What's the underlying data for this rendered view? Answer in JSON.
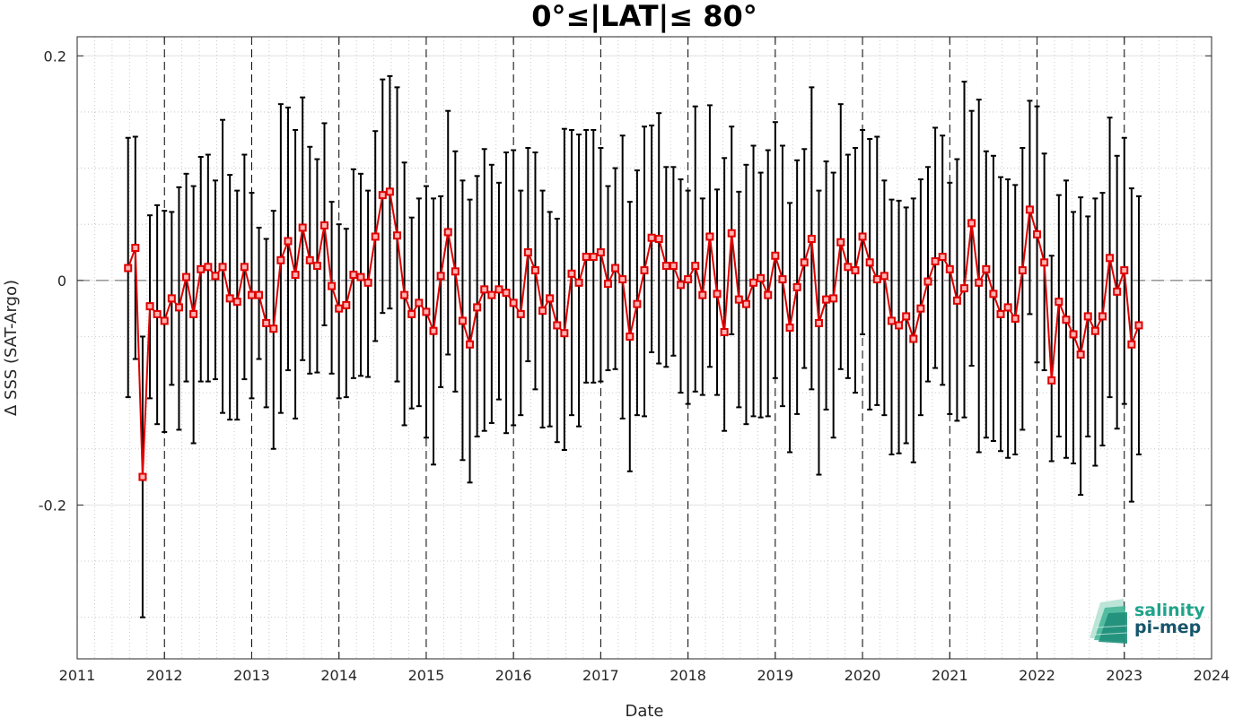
{
  "chart_data": {
    "type": "line",
    "title": "0°≤|LAT|≤ 80°",
    "xlabel": "Date",
    "ylabel": "Δ SSS (SAT-Argo)",
    "xlim": [
      2011,
      2024
    ],
    "ylim": [
      -0.337,
      0.217
    ],
    "xticks": [
      "2011",
      "2012",
      "2013",
      "2014",
      "2015",
      "2016",
      "2017",
      "2018",
      "2019",
      "2020",
      "2021",
      "2022",
      "2023",
      "2024"
    ],
    "yticks": [
      {
        "value": -0.2,
        "label": "-0.2"
      },
      {
        "value": 0,
        "label": "0"
      },
      {
        "value": 0.2,
        "label": "0.2"
      }
    ],
    "grid": true,
    "zero_line": true,
    "series": [
      {
        "color": "#e00000",
        "marker": "square",
        "error_bar_color": "#000000",
        "x": [
          "2011-08",
          "2011-09",
          "2011-10",
          "2011-11",
          "2011-12",
          "2012-01",
          "2012-02",
          "2012-03",
          "2012-04",
          "2012-05",
          "2012-06",
          "2012-07",
          "2012-08",
          "2012-09",
          "2012-10",
          "2012-11",
          "2012-12",
          "2013-01",
          "2013-02",
          "2013-03",
          "2013-04",
          "2013-05",
          "2013-06",
          "2013-07",
          "2013-08",
          "2013-09",
          "2013-10",
          "2013-11",
          "2013-12",
          "2014-01",
          "2014-02",
          "2014-03",
          "2014-04",
          "2014-05",
          "2014-06",
          "2014-07",
          "2014-08",
          "2014-09",
          "2014-10",
          "2014-11",
          "2014-12",
          "2015-01",
          "2015-02",
          "2015-03",
          "2015-04",
          "2015-05",
          "2015-06",
          "2015-07",
          "2015-08",
          "2015-09",
          "2015-10",
          "2015-11",
          "2015-12",
          "2016-01",
          "2016-02",
          "2016-03",
          "2016-04",
          "2016-05",
          "2016-06",
          "2016-07",
          "2016-08",
          "2016-09",
          "2016-10",
          "2016-11",
          "2016-12",
          "2017-01",
          "2017-02",
          "2017-03",
          "2017-04",
          "2017-05",
          "2017-06",
          "2017-07",
          "2017-08",
          "2017-09",
          "2017-10",
          "2017-11",
          "2017-12",
          "2018-01",
          "2018-02",
          "2018-03",
          "2018-04",
          "2018-05",
          "2018-06",
          "2018-07",
          "2018-08",
          "2018-09",
          "2018-10",
          "2018-11",
          "2018-12",
          "2019-01",
          "2019-02",
          "2019-03",
          "2019-04",
          "2019-05",
          "2019-06",
          "2019-07",
          "2019-08",
          "2019-09",
          "2019-10",
          "2019-11",
          "2019-12",
          "2020-01",
          "2020-02",
          "2020-03",
          "2020-04",
          "2020-05",
          "2020-06",
          "2020-07",
          "2020-08",
          "2020-09",
          "2020-10",
          "2020-11",
          "2020-12",
          "2021-01",
          "2021-02",
          "2021-03",
          "2021-04",
          "2021-05",
          "2021-06",
          "2021-07",
          "2021-08",
          "2021-09",
          "2021-10",
          "2021-11",
          "2021-12",
          "2022-01",
          "2022-02",
          "2022-03",
          "2022-04",
          "2022-05",
          "2022-06",
          "2022-07",
          "2022-08",
          "2022-09",
          "2022-10",
          "2022-11",
          "2022-12",
          "2023-01",
          "2023-02",
          "2023-03"
        ],
        "y": [
          0.011,
          0.029,
          -0.175,
          -0.023,
          -0.03,
          -0.036,
          -0.016,
          -0.024,
          0.003,
          -0.03,
          0.01,
          0.012,
          0.004,
          0.012,
          -0.016,
          -0.019,
          0.012,
          -0.013,
          -0.013,
          -0.038,
          -0.043,
          0.018,
          0.035,
          0.005,
          0.047,
          0.018,
          0.013,
          0.049,
          -0.005,
          -0.025,
          -0.022,
          0.005,
          0.003,
          -0.002,
          0.039,
          0.076,
          0.079,
          0.04,
          -0.013,
          -0.03,
          -0.02,
          -0.028,
          -0.045,
          0.004,
          0.043,
          0.008,
          -0.036,
          -0.057,
          -0.024,
          -0.008,
          -0.013,
          -0.008,
          -0.011,
          -0.02,
          -0.03,
          0.025,
          0.009,
          -0.027,
          -0.016,
          -0.04,
          -0.047,
          0.006,
          -0.002,
          0.021,
          0.021,
          0.025,
          -0.003,
          0.011,
          0.001,
          -0.05,
          -0.021,
          0.009,
          0.038,
          0.037,
          0.013,
          0.013,
          -0.004,
          0.001,
          0.013,
          -0.013,
          0.039,
          -0.012,
          -0.046,
          0.042,
          -0.017,
          -0.021,
          -0.002,
          0.002,
          -0.013,
          0.022,
          0.001,
          -0.042,
          -0.006,
          0.016,
          0.037,
          -0.038,
          -0.017,
          -0.016,
          0.034,
          0.012,
          0.009,
          0.039,
          0.016,
          0.001,
          0.004,
          -0.036,
          -0.04,
          -0.032,
          -0.052,
          -0.025,
          -0.001,
          0.017,
          0.021,
          0.01,
          -0.018,
          -0.007,
          0.051,
          -0.002,
          0.01,
          -0.012,
          -0.03,
          -0.024,
          -0.034,
          0.009,
          0.063,
          0.041,
          0.016,
          -0.089,
          -0.019,
          -0.035,
          -0.048,
          -0.066,
          -0.032,
          -0.045,
          -0.032,
          0.02,
          -0.01,
          0.009,
          -0.057,
          -0.04
        ],
        "err_high": [
          0.127,
          0.128,
          -0.05,
          0.058,
          0.067,
          0.062,
          0.061,
          0.083,
          0.095,
          0.084,
          0.11,
          0.112,
          0.089,
          0.143,
          0.094,
          0.08,
          0.112,
          0.078,
          0.047,
          0.037,
          0.062,
          0.157,
          0.154,
          0.134,
          0.163,
          0.119,
          0.108,
          0.14,
          0.07,
          0.05,
          0.046,
          0.099,
          0.095,
          0.08,
          0.133,
          0.179,
          0.182,
          0.172,
          0.105,
          0.056,
          0.073,
          0.084,
          0.073,
          0.075,
          0.151,
          0.115,
          0.089,
          0.072,
          0.093,
          0.117,
          0.103,
          0.087,
          0.114,
          0.116,
          0.08,
          0.118,
          0.114,
          0.08,
          0.061,
          0.055,
          0.135,
          0.134,
          0.13,
          0.134,
          0.134,
          0.118,
          0.084,
          0.1,
          0.129,
          0.07,
          0.098,
          0.137,
          0.138,
          0.149,
          0.101,
          0.101,
          0.09,
          0.08,
          0.155,
          0.073,
          0.156,
          0.081,
          0.109,
          0.137,
          0.079,
          0.103,
          0.12,
          0.096,
          0.116,
          0.141,
          0.12,
          0.069,
          0.107,
          0.117,
          0.172,
          0.08,
          0.106,
          0.096,
          0.157,
          0.112,
          0.118,
          0.134,
          0.126,
          0.128,
          0.089,
          0.072,
          0.071,
          0.065,
          0.073,
          0.09,
          0.101,
          0.136,
          0.129,
          0.087,
          0.108,
          0.177,
          0.151,
          0.161,
          0.115,
          0.111,
          0.092,
          0.09,
          0.085,
          0.118,
          0.16,
          0.155,
          0.113,
          0.022,
          0.076,
          0.089,
          0.061,
          0.074,
          0.057,
          0.073,
          0.078,
          0.145,
          0.111,
          0.127,
          0.082,
          0.075
        ],
        "err_low": [
          -0.104,
          -0.07,
          -0.3,
          -0.105,
          -0.128,
          -0.135,
          -0.093,
          -0.133,
          -0.09,
          -0.145,
          -0.09,
          -0.09,
          -0.088,
          -0.118,
          -0.124,
          -0.124,
          -0.088,
          -0.105,
          -0.07,
          -0.113,
          -0.15,
          -0.118,
          -0.08,
          -0.123,
          -0.071,
          -0.083,
          -0.082,
          -0.04,
          -0.083,
          -0.105,
          -0.104,
          -0.087,
          -0.085,
          -0.086,
          -0.054,
          -0.029,
          -0.025,
          -0.09,
          -0.129,
          -0.114,
          -0.112,
          -0.14,
          -0.164,
          -0.095,
          -0.066,
          -0.099,
          -0.16,
          -0.18,
          -0.139,
          -0.134,
          -0.127,
          -0.106,
          -0.136,
          -0.129,
          -0.12,
          -0.072,
          -0.097,
          -0.131,
          -0.13,
          -0.144,
          -0.151,
          -0.12,
          -0.13,
          -0.091,
          -0.091,
          -0.09,
          -0.08,
          -0.079,
          -0.123,
          -0.17,
          -0.12,
          -0.121,
          -0.064,
          -0.074,
          -0.077,
          -0.067,
          -0.1,
          -0.11,
          -0.099,
          -0.102,
          -0.077,
          -0.102,
          -0.134,
          -0.048,
          -0.113,
          -0.128,
          -0.121,
          -0.122,
          -0.121,
          -0.087,
          -0.112,
          -0.153,
          -0.119,
          -0.078,
          -0.097,
          -0.173,
          -0.115,
          -0.14,
          -0.079,
          -0.087,
          -0.1,
          -0.048,
          -0.115,
          -0.111,
          -0.12,
          -0.155,
          -0.154,
          -0.145,
          -0.162,
          -0.12,
          -0.09,
          -0.078,
          -0.093,
          -0.119,
          -0.125,
          -0.122,
          -0.076,
          -0.153,
          -0.14,
          -0.143,
          -0.152,
          -0.158,
          -0.155,
          -0.133,
          -0.03,
          -0.073,
          -0.08,
          -0.161,
          -0.139,
          -0.158,
          -0.163,
          -0.191,
          -0.139,
          -0.165,
          -0.147,
          -0.104,
          -0.132,
          -0.11,
          -0.197,
          -0.155
        ]
      }
    ],
    "logo": {
      "line1": "salinity",
      "line2": "pi-mep",
      "color1": "#1fa38a",
      "color2": "#17556b"
    }
  }
}
